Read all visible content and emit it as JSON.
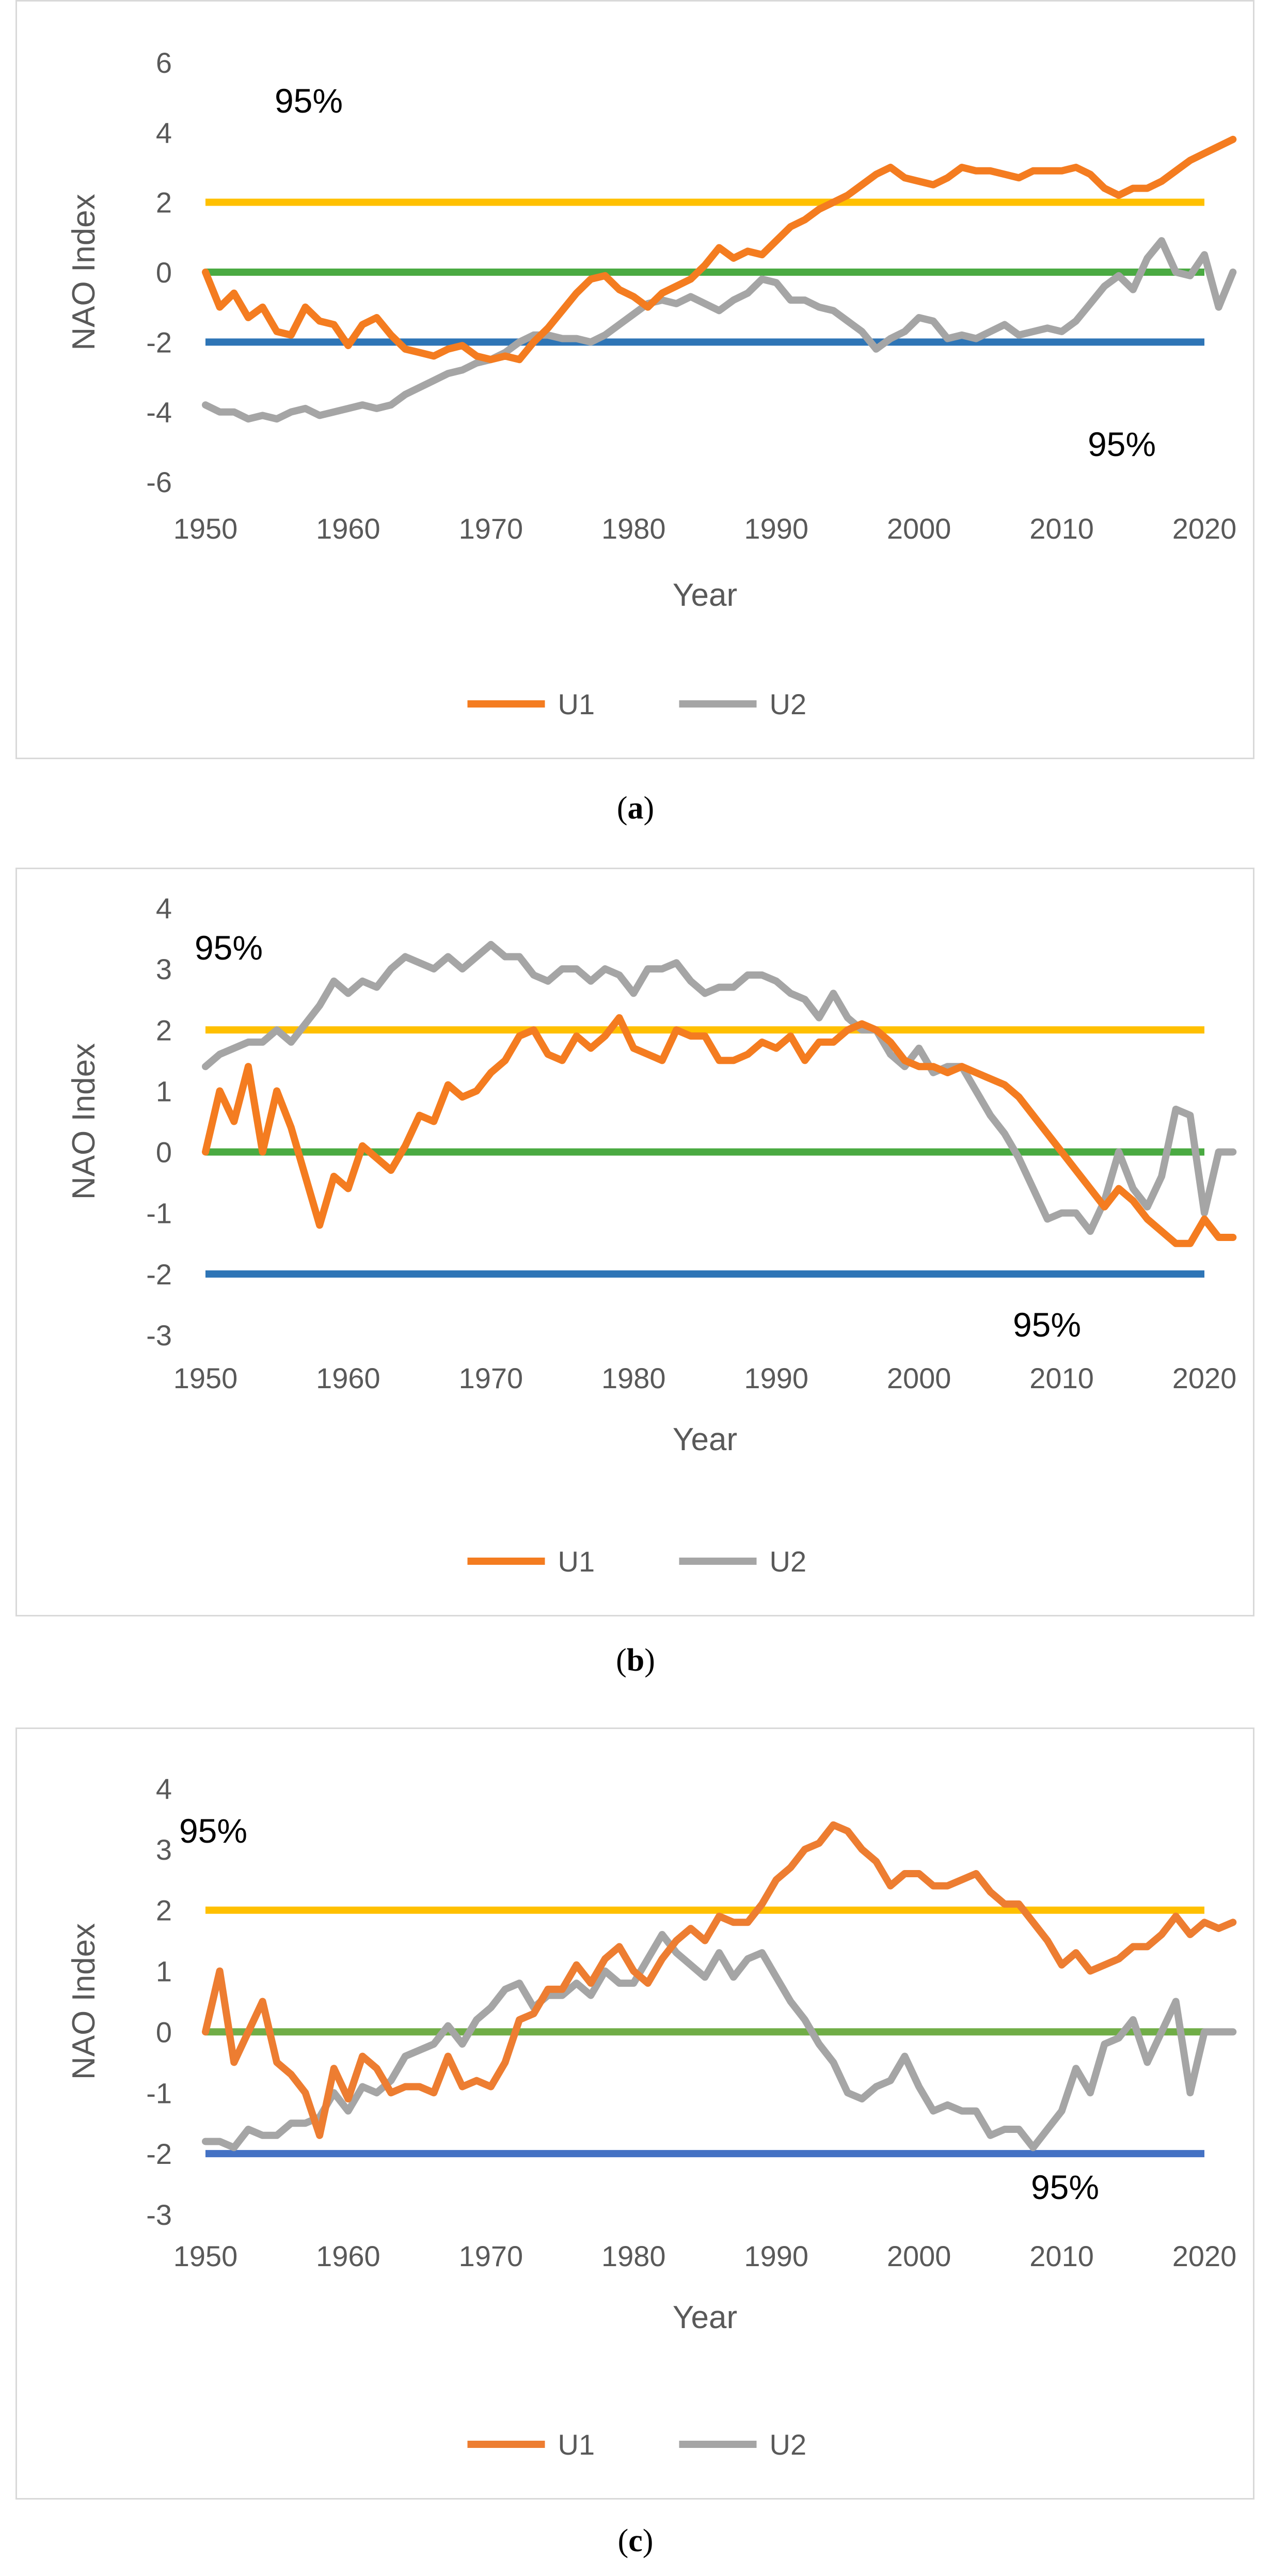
{
  "colors": {
    "U1": "#f47c20",
    "U2": "#a5a5a5",
    "upper": "#ffc000",
    "zero": "#4aaa42",
    "lower": "#2e75b6",
    "border": "#d9d9d9"
  },
  "panels": [
    {
      "caption_letter": "a"
    },
    {
      "caption_letter": "b"
    },
    {
      "caption_letter": "c"
    }
  ],
  "chart_data": [
    {
      "type": "line",
      "xlabel": "Year",
      "ylabel": "NAO Index",
      "xlim": [
        1950,
        2020
      ],
      "ylim": [
        -6,
        6
      ],
      "x_ticks": [
        1950,
        1960,
        1970,
        1980,
        1990,
        2000,
        2010,
        2020
      ],
      "y_ticks": [
        6,
        4,
        2,
        0,
        -2,
        -4,
        -6
      ],
      "reference_lines": [
        {
          "value": 2,
          "color": "#ffc000"
        },
        {
          "value": 0,
          "color": "#4aaa42"
        },
        {
          "value": -2,
          "color": "#2e75b6"
        }
      ],
      "annotations": [
        "95%",
        "95%"
      ],
      "legend": "bottom",
      "x_start": 1950,
      "series": [
        {
          "name": "U1",
          "color": "#f47c20",
          "values": [
            0,
            -1,
            -0.6,
            -1.3,
            -1,
            -1.7,
            -1.8,
            -1,
            -1.4,
            -1.5,
            -2.1,
            -1.5,
            -1.3,
            -1.8,
            -2.2,
            -2.3,
            -2.4,
            -2.2,
            -2.1,
            -2.4,
            -2.5,
            -2.4,
            -2.5,
            -2,
            -1.6,
            -1.1,
            -0.6,
            -0.2,
            -0.1,
            -0.5,
            -0.7,
            -1,
            -0.6,
            -0.4,
            -0.2,
            0.2,
            0.7,
            0.4,
            0.6,
            0.5,
            0.9,
            1.3,
            1.5,
            1.8,
            2,
            2.2,
            2.5,
            2.8,
            3,
            2.7,
            2.6,
            2.5,
            2.7,
            3,
            2.9,
            2.9,
            2.8,
            2.7,
            2.9,
            2.9,
            2.9,
            3,
            2.8,
            2.4,
            2.2,
            2.4,
            2.4,
            2.6,
            2.9,
            3.2,
            3.4,
            3.6,
            3.8
          ]
        },
        {
          "name": "U2",
          "color": "#a5a5a5",
          "values": [
            -3.8,
            -4,
            -4,
            -4.2,
            -4.1,
            -4.2,
            -4,
            -3.9,
            -4.1,
            -4,
            -3.9,
            -3.8,
            -3.9,
            -3.8,
            -3.5,
            -3.3,
            -3.1,
            -2.9,
            -2.8,
            -2.6,
            -2.5,
            -2.3,
            -2,
            -1.8,
            -1.8,
            -1.9,
            -1.9,
            -2,
            -1.8,
            -1.5,
            -1.2,
            -0.9,
            -0.8,
            -0.9,
            -0.7,
            -0.9,
            -1.1,
            -0.8,
            -0.6,
            -0.2,
            -0.3,
            -0.8,
            -0.8,
            -1,
            -1.1,
            -1.4,
            -1.7,
            -2.2,
            -1.9,
            -1.7,
            -1.3,
            -1.4,
            -1.9,
            -1.8,
            -1.9,
            -1.7,
            -1.5,
            -1.8,
            -1.7,
            -1.6,
            -1.7,
            -1.4,
            -0.9,
            -0.4,
            -0.1,
            -0.5,
            0.4,
            0.9,
            0,
            -0.1,
            0.5,
            -1,
            0
          ]
        }
      ]
    },
    {
      "type": "line",
      "xlabel": "Year",
      "ylabel": "NAO Index",
      "xlim": [
        1950,
        2020
      ],
      "ylim": [
        -3,
        4
      ],
      "x_ticks": [
        1950,
        1960,
        1970,
        1980,
        1990,
        2000,
        2010,
        2020
      ],
      "y_ticks": [
        4,
        3,
        2,
        1,
        0,
        -1,
        -2,
        -3
      ],
      "reference_lines": [
        {
          "value": 2,
          "color": "#ffc000"
        },
        {
          "value": 0,
          "color": "#4aaa42"
        },
        {
          "value": -2,
          "color": "#2e75b6"
        }
      ],
      "annotations": [
        "95%",
        "95%"
      ],
      "legend": "bottom",
      "x_start": 1950,
      "series": [
        {
          "name": "U1",
          "color": "#f47c20",
          "values": [
            0,
            1,
            0.5,
            1.4,
            0,
            1,
            0.4,
            -0.4,
            -1.2,
            -0.4,
            -0.6,
            0.1,
            -0.1,
            -0.3,
            0.1,
            0.6,
            0.5,
            1.1,
            0.9,
            1,
            1.3,
            1.5,
            1.9,
            2,
            1.6,
            1.5,
            1.9,
            1.7,
            1.9,
            2.2,
            1.7,
            1.6,
            1.5,
            2,
            1.9,
            1.9,
            1.5,
            1.5,
            1.6,
            1.8,
            1.7,
            1.9,
            1.5,
            1.8,
            1.8,
            2,
            2.1,
            2,
            1.8,
            1.5,
            1.4,
            1.4,
            1.3,
            1.4,
            1.3,
            1.2,
            1.1,
            0.9,
            0.6,
            0.3,
            0,
            -0.3,
            -0.6,
            -0.9,
            -0.6,
            -0.8,
            -1.1,
            -1.3,
            -1.5,
            -1.5,
            -1.1,
            -1.4,
            -1.4
          ]
        },
        {
          "name": "U2",
          "color": "#a5a5a5",
          "values": [
            1.4,
            1.6,
            1.7,
            1.8,
            1.8,
            2,
            1.8,
            2.1,
            2.4,
            2.8,
            2.6,
            2.8,
            2.7,
            3,
            3.2,
            3.1,
            3,
            3.2,
            3,
            3.2,
            3.4,
            3.2,
            3.2,
            2.9,
            2.8,
            3,
            3,
            2.8,
            3,
            2.9,
            2.6,
            3,
            3,
            3.1,
            2.8,
            2.6,
            2.7,
            2.7,
            2.9,
            2.9,
            2.8,
            2.6,
            2.5,
            2.2,
            2.6,
            2.2,
            2,
            2,
            1.6,
            1.4,
            1.7,
            1.3,
            1.4,
            1.4,
            1,
            0.6,
            0.3,
            -0.1,
            -0.6,
            -1.1,
            -1,
            -1,
            -1.3,
            -0.8,
            0,
            -0.6,
            -0.9,
            -0.4,
            0.7,
            0.6,
            -1,
            0,
            0
          ]
        }
      ]
    },
    {
      "type": "line",
      "xlabel": "Year",
      "ylabel": "NAO Index",
      "xlim": [
        1950,
        2020
      ],
      "ylim": [
        -3,
        4
      ],
      "x_ticks": [
        1950,
        1960,
        1970,
        1980,
        1990,
        2000,
        2010,
        2020
      ],
      "y_ticks": [
        4,
        3,
        2,
        1,
        0,
        -1,
        -2,
        -3
      ],
      "reference_lines": [
        {
          "value": 2,
          "color": "#ffc000"
        },
        {
          "value": 0,
          "color": "#70ad47"
        },
        {
          "value": -2,
          "color": "#4472c4"
        }
      ],
      "annotations": [
        "95%",
        "95%"
      ],
      "legend": "bottom",
      "x_start": 1950,
      "series": [
        {
          "name": "U1",
          "color": "#ed7d31",
          "values": [
            0,
            1,
            -0.5,
            0,
            0.5,
            -0.5,
            -0.7,
            -1,
            -1.7,
            -0.6,
            -1.1,
            -0.4,
            -0.6,
            -1,
            -0.9,
            -0.9,
            -1,
            -0.4,
            -0.9,
            -0.8,
            -0.9,
            -0.5,
            0.2,
            0.3,
            0.7,
            0.7,
            1.1,
            0.8,
            1.2,
            1.4,
            1,
            0.8,
            1.2,
            1.5,
            1.7,
            1.5,
            1.9,
            1.8,
            1.8,
            2.1,
            2.5,
            2.7,
            3,
            3.1,
            3.4,
            3.3,
            3,
            2.8,
            2.4,
            2.6,
            2.6,
            2.4,
            2.4,
            2.5,
            2.6,
            2.3,
            2.1,
            2.1,
            1.8,
            1.5,
            1.1,
            1.3,
            1,
            1.1,
            1.2,
            1.4,
            1.4,
            1.6,
            1.9,
            1.6,
            1.8,
            1.7,
            1.8
          ]
        },
        {
          "name": "U2",
          "color": "#a5a5a5",
          "values": [
            -1.8,
            -1.8,
            -1.9,
            -1.6,
            -1.7,
            -1.7,
            -1.5,
            -1.5,
            -1.4,
            -1,
            -1.3,
            -0.9,
            -1,
            -0.8,
            -0.4,
            -0.3,
            -0.2,
            0.1,
            -0.2,
            0.2,
            0.4,
            0.7,
            0.8,
            0.4,
            0.6,
            0.6,
            0.8,
            0.6,
            1,
            0.8,
            0.8,
            1.2,
            1.6,
            1.3,
            1.1,
            0.9,
            1.3,
            0.9,
            1.2,
            1.3,
            0.9,
            0.5,
            0.2,
            -0.2,
            -0.5,
            -1,
            -1.1,
            -0.9,
            -0.8,
            -0.4,
            -0.9,
            -1.3,
            -1.2,
            -1.3,
            -1.3,
            -1.7,
            -1.6,
            -1.6,
            -1.9,
            -1.6,
            -1.3,
            -0.6,
            -1,
            -0.2,
            -0.1,
            0.2,
            -0.5,
            0,
            0.5,
            -1,
            0,
            0,
            0
          ]
        }
      ]
    }
  ]
}
